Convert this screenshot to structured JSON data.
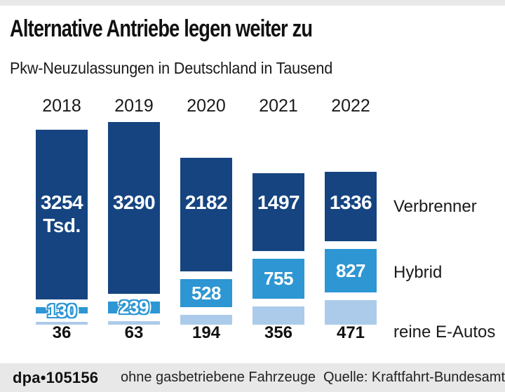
{
  "chart_data": {
    "type": "bar",
    "stacked": true,
    "title": "Alternative Antriebe legen weiter zu",
    "subtitle": "Pkw-Neuzulassungen in Deutschland in Tausend",
    "unit": "Tausend",
    "categories": [
      "2018",
      "2019",
      "2020",
      "2021",
      "2022"
    ],
    "series": [
      {
        "name": "Verbrenner",
        "color": "#154480",
        "values": [
          3254,
          3290,
          2182,
          1497,
          1336
        ],
        "labels": [
          [
            "3254",
            "Tsd."
          ],
          [
            "3290"
          ],
          [
            "2182"
          ],
          [
            "1497"
          ],
          [
            "1336"
          ]
        ]
      },
      {
        "name": "Hybrid",
        "color": "#2d96d3",
        "values": [
          130,
          239,
          528,
          755,
          827
        ],
        "labels": [
          "130",
          "239",
          "528",
          "755",
          "827"
        ]
      },
      {
        "name": "reine E-Autos",
        "color": "#accbea",
        "values": [
          36,
          63,
          194,
          356,
          471
        ],
        "labels": [
          "36",
          "63",
          "194",
          "356",
          "471"
        ]
      }
    ],
    "legend_position": "right",
    "grid": false
  },
  "footer": {
    "credit": "dpa•105156",
    "note": "ohne gasbetriebene Fahrzeuge",
    "source": "Quelle: Kraftfahrt-Bundesamt"
  },
  "colors": {
    "band_gray": "#e8e8e8",
    "background": "#ffffff",
    "text": "#1a1a1a"
  }
}
